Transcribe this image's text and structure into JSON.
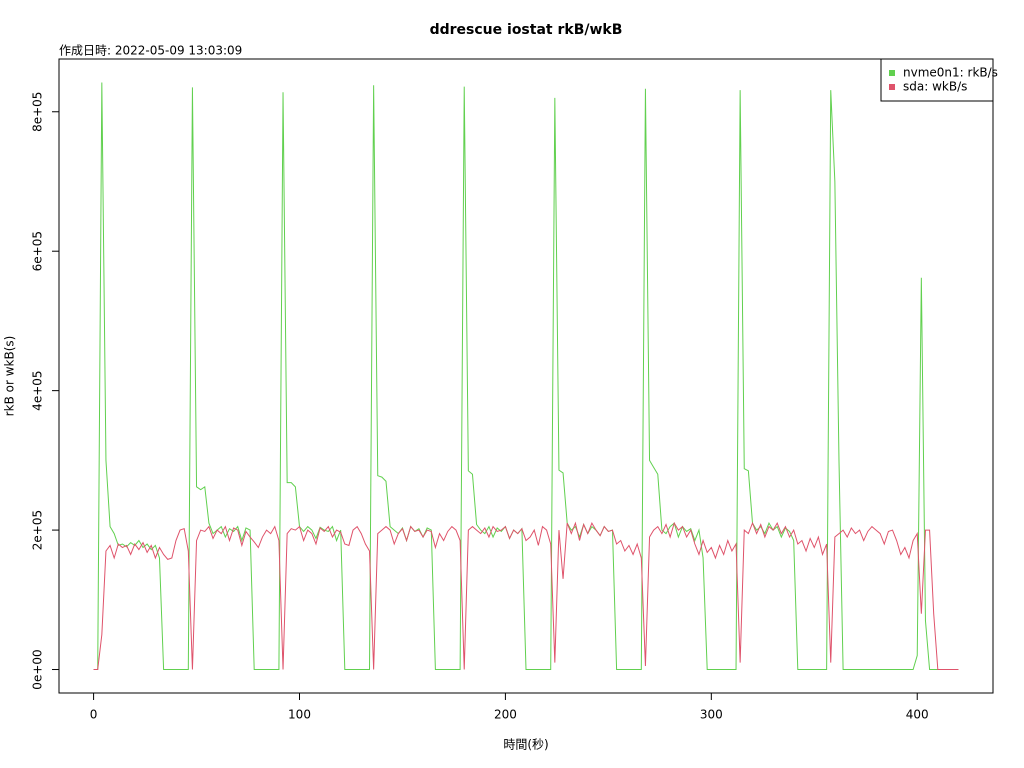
{
  "chart_data": {
    "type": "line",
    "title": "ddrescue iostat rkB/wkB",
    "subtitle": "作成日時: 2022-05-09 13:03:09",
    "x_label": "時間(秒)",
    "y_label": "rkB or wkB(s)",
    "legend": "top-right",
    "xlim": [
      -16.8,
      436.8
    ],
    "ylim": [
      -33680,
      875680
    ],
    "xticks": [
      0,
      100,
      200,
      300,
      400
    ],
    "yticks": [
      {
        "value": 0,
        "label": "0e+00"
      },
      {
        "value": 200000,
        "label": "2e+05"
      },
      {
        "value": 400000,
        "label": "4e+05"
      },
      {
        "value": 600000,
        "label": "6e+05"
      },
      {
        "value": 800000,
        "label": "8e+05"
      }
    ],
    "x": [
      0,
      2,
      4,
      6,
      8,
      10,
      12,
      14,
      16,
      18,
      20,
      22,
      24,
      26,
      28,
      30,
      32,
      34,
      36,
      38,
      40,
      42,
      44,
      46,
      48,
      50,
      52,
      54,
      56,
      58,
      60,
      62,
      64,
      66,
      68,
      70,
      72,
      74,
      76,
      78,
      80,
      82,
      84,
      86,
      88,
      90,
      92,
      94,
      96,
      98,
      100,
      102,
      104,
      106,
      108,
      110,
      112,
      114,
      116,
      118,
      120,
      122,
      124,
      126,
      128,
      130,
      132,
      134,
      136,
      138,
      140,
      142,
      144,
      146,
      148,
      150,
      152,
      154,
      156,
      158,
      160,
      162,
      164,
      166,
      168,
      170,
      172,
      174,
      176,
      178,
      180,
      182,
      184,
      186,
      188,
      190,
      192,
      194,
      196,
      198,
      200,
      202,
      204,
      206,
      208,
      210,
      212,
      214,
      216,
      218,
      220,
      222,
      224,
      226,
      228,
      230,
      232,
      234,
      236,
      238,
      240,
      242,
      244,
      246,
      248,
      250,
      252,
      254,
      256,
      258,
      260,
      262,
      264,
      266,
      268,
      270,
      272,
      274,
      276,
      278,
      280,
      282,
      284,
      286,
      288,
      290,
      292,
      294,
      296,
      298,
      300,
      302,
      304,
      306,
      308,
      310,
      312,
      314,
      316,
      318,
      320,
      322,
      324,
      326,
      328,
      330,
      332,
      334,
      336,
      338,
      340,
      342,
      344,
      346,
      348,
      350,
      352,
      354,
      356,
      358,
      360,
      362,
      364,
      366,
      368,
      370,
      372,
      374,
      376,
      378,
      380,
      382,
      384,
      386,
      388,
      390,
      392,
      394,
      396,
      398,
      400,
      402,
      404,
      406,
      408,
      410,
      412,
      414,
      416,
      418,
      420
    ],
    "series": [
      {
        "name": "nvme0n1: rkB/s",
        "color": "#61d04f",
        "values": [
          0,
          0,
          842000,
          300000,
          205000,
          195000,
          178000,
          180000,
          176000,
          182000,
          178000,
          185000,
          175000,
          180000,
          172000,
          178000,
          160000,
          0,
          0,
          0,
          0,
          0,
          0,
          0,
          835000,
          262000,
          258000,
          262000,
          210000,
          195000,
          200000,
          205000,
          190000,
          202000,
          198000,
          205000,
          185000,
          203000,
          200000,
          0,
          0,
          0,
          0,
          0,
          0,
          0,
          828000,
          268000,
          268000,
          262000,
          205000,
          198000,
          205000,
          200000,
          188000,
          204000,
          200000,
          198000,
          205000,
          185000,
          200000,
          0,
          0,
          0,
          0,
          0,
          0,
          0,
          838000,
          278000,
          276000,
          270000,
          205000,
          200000,
          195000,
          203000,
          185000,
          205000,
          198000,
          202000,
          190000,
          203000,
          200000,
          0,
          0,
          0,
          0,
          0,
          0,
          0,
          836000,
          285000,
          280000,
          208000,
          200000,
          195000,
          205000,
          190000,
          203000,
          198000,
          205000,
          188000,
          200000,
          195000,
          202000,
          0,
          0,
          0,
          0,
          0,
          0,
          0,
          820000,
          286000,
          282000,
          210000,
          200000,
          205000,
          190000,
          208000,
          195000,
          205000,
          200000,
          192000,
          205000,
          198000,
          200000,
          0,
          0,
          0,
          0,
          0,
          0,
          0,
          833000,
          300000,
          290000,
          280000,
          200000,
          195000,
          205000,
          210000,
          190000,
          205000,
          198000,
          202000,
          185000,
          200000,
          160000,
          0,
          0,
          0,
          0,
          0,
          0,
          0,
          0,
          831000,
          288000,
          285000,
          210000,
          200000,
          205000,
          195000,
          210000,
          200000,
          205000,
          190000,
          203000,
          198000,
          185000,
          0,
          0,
          0,
          0,
          0,
          0,
          0,
          0,
          831000,
          700000,
          300000,
          0,
          0,
          0,
          0,
          0,
          0,
          0,
          0,
          0,
          0,
          0,
          0,
          0,
          0,
          0,
          0,
          0,
          0,
          20000,
          562000,
          70000,
          0,
          0,
          0,
          0,
          0,
          0,
          0,
          0
        ]
      },
      {
        "name": "sda: wkB/s",
        "color": "#df536b",
        "values": [
          0,
          0,
          50000,
          170000,
          178000,
          160000,
          180000,
          175000,
          178000,
          165000,
          180000,
          172000,
          182000,
          168000,
          178000,
          160000,
          175000,
          165000,
          158000,
          160000,
          185000,
          200000,
          202000,
          170000,
          0,
          185000,
          200000,
          198000,
          205000,
          188000,
          200000,
          195000,
          205000,
          185000,
          203000,
          200000,
          178000,
          198000,
          190000,
          183000,
          175000,
          190000,
          200000,
          195000,
          205000,
          185000,
          0,
          195000,
          202000,
          200000,
          205000,
          185000,
          200000,
          195000,
          180000,
          203000,
          198000,
          205000,
          190000,
          200000,
          197000,
          180000,
          178000,
          200000,
          205000,
          195000,
          180000,
          170000,
          0,
          195000,
          200000,
          205000,
          200000,
          180000,
          195000,
          202000,
          185000,
          205000,
          198000,
          200000,
          190000,
          200000,
          198000,
          175000,
          195000,
          185000,
          198000,
          205000,
          200000,
          185000,
          0,
          200000,
          205000,
          200000,
          195000,
          203000,
          190000,
          205000,
          198000,
          200000,
          205000,
          188000,
          200000,
          195000,
          202000,
          185000,
          190000,
          200000,
          178000,
          205000,
          200000,
          180000,
          10000,
          200000,
          130000,
          210000,
          195000,
          210000,
          185000,
          208000,
          195000,
          210000,
          200000,
          192000,
          205000,
          198000,
          200000,
          180000,
          185000,
          170000,
          178000,
          165000,
          180000,
          160000,
          5000,
          190000,
          200000,
          205000,
          195000,
          208000,
          190000,
          210000,
          200000,
          205000,
          190000,
          200000,
          180000,
          165000,
          185000,
          168000,
          175000,
          160000,
          178000,
          165000,
          185000,
          170000,
          180000,
          10000,
          200000,
          195000,
          210000,
          195000,
          208000,
          190000,
          205000,
          200000,
          210000,
          195000,
          205000,
          190000,
          200000,
          180000,
          185000,
          170000,
          188000,
          175000,
          190000,
          165000,
          180000,
          10000,
          190000,
          195000,
          200000,
          190000,
          203000,
          195000,
          200000,
          185000,
          198000,
          205000,
          200000,
          195000,
          180000,
          198000,
          200000,
          185000,
          165000,
          175000,
          160000,
          185000,
          195000,
          80000,
          200000,
          200000,
          80000,
          0,
          0,
          0,
          0,
          0,
          0
        ]
      }
    ]
  }
}
